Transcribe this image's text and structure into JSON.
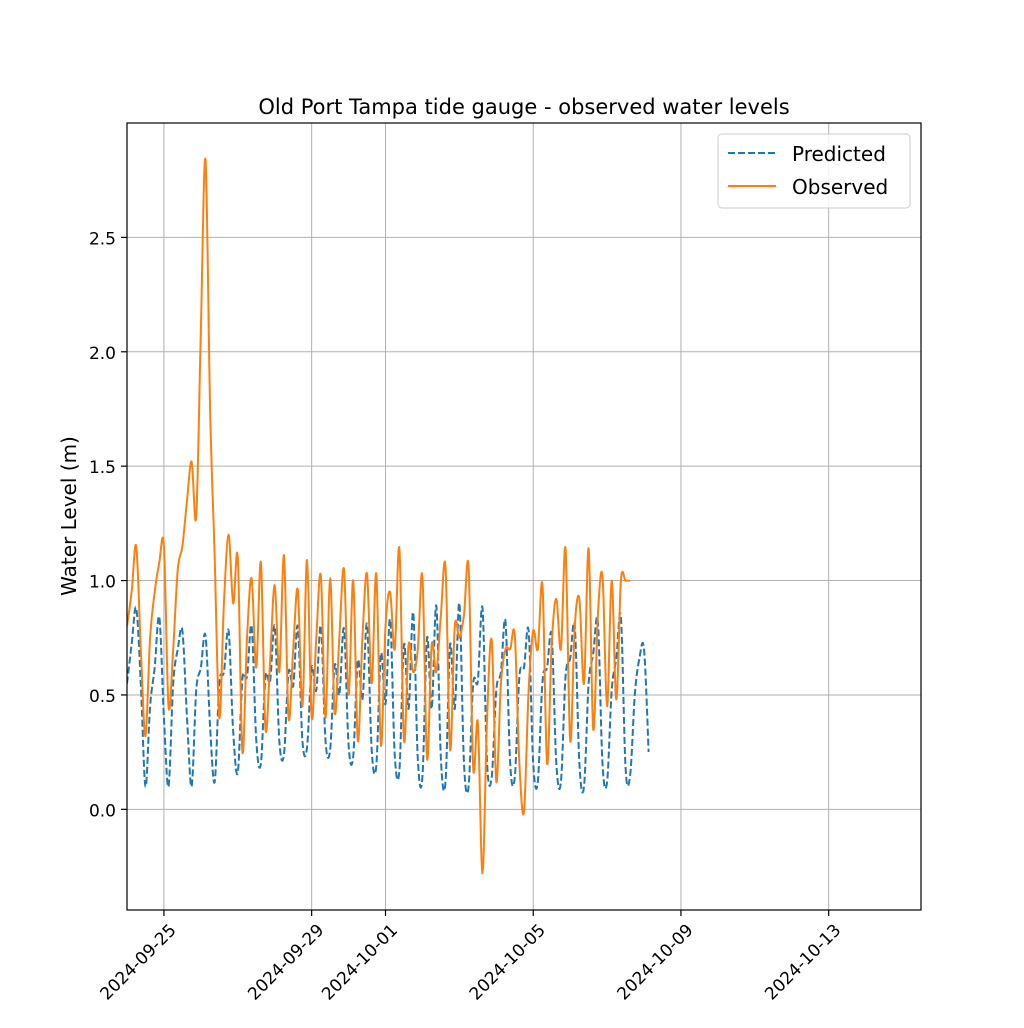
{
  "chart_data": {
    "type": "line",
    "title": "Old Port Tampa tide gauge - observed water levels",
    "xlabel": "",
    "ylabel": "Water Level (m)",
    "x_range": [
      "2024-09-24 00:00",
      "2024-10-15 12:00"
    ],
    "ylim": [
      -0.44,
      3.0
    ],
    "grid": true,
    "legend_position": "top-right",
    "x_ticks": [
      "2024-09-25",
      "2024-09-29",
      "2024-10-01",
      "2024-10-05",
      "2024-10-09",
      "2024-10-13"
    ],
    "y_ticks": [
      "0.0",
      "0.5",
      "1.0",
      "1.5",
      "2.0",
      "2.5"
    ],
    "y_tick_values": [
      0.0,
      0.5,
      1.0,
      1.5,
      2.0,
      2.5
    ],
    "series": [
      {
        "name": "Predicted",
        "color": "#1f77b4",
        "style": "dashed",
        "start": "2024-09-24 00:00",
        "step_hours": 3,
        "values": [
          0.55,
          0.72,
          0.88,
          0.55,
          0.1,
          0.45,
          0.62,
          0.84,
          0.4,
          0.1,
          0.55,
          0.7,
          0.78,
          0.4,
          0.1,
          0.52,
          0.62,
          0.76,
          0.36,
          0.12,
          0.55,
          0.6,
          0.78,
          0.34,
          0.16,
          0.57,
          0.58,
          0.8,
          0.3,
          0.2,
          0.58,
          0.56,
          0.8,
          0.3,
          0.24,
          0.6,
          0.54,
          0.8,
          0.3,
          0.27,
          0.62,
          0.52,
          0.8,
          0.3,
          0.26,
          0.63,
          0.5,
          0.79,
          0.28,
          0.23,
          0.65,
          0.48,
          0.81,
          0.26,
          0.19,
          0.68,
          0.46,
          0.83,
          0.24,
          0.17,
          0.72,
          0.44,
          0.86,
          0.22,
          0.14,
          0.75,
          0.44,
          0.89,
          0.22,
          0.12,
          0.72,
          0.44,
          0.9,
          0.2,
          0.1,
          0.55,
          0.56,
          0.88,
          0.2,
          0.14,
          0.52,
          0.6,
          0.82,
          0.2,
          0.14,
          0.58,
          0.62,
          0.78,
          0.2,
          0.12,
          0.56,
          0.62,
          0.76,
          0.2,
          0.12,
          0.58,
          0.66,
          0.8,
          0.2,
          0.1,
          0.55,
          0.68,
          0.82,
          0.2,
          0.12,
          0.52,
          0.66,
          0.84,
          0.18,
          0.15,
          0.5,
          0.66,
          0.7,
          0.25
        ]
      },
      {
        "name": "Observed",
        "color": "#ff7f0e",
        "style": "solid",
        "start": "2024-09-24 00:00",
        "step_hours": 3,
        "values": [
          0.8,
          0.95,
          1.15,
          0.7,
          0.32,
          0.75,
          0.95,
          1.08,
          1.15,
          0.45,
          0.7,
          1.05,
          1.15,
          1.35,
          1.52,
          1.28,
          2.1,
          2.84,
          1.75,
          1.1,
          0.4,
          0.9,
          1.2,
          0.9,
          1.1,
          0.25,
          0.75,
          1.01,
          0.62,
          1.08,
          0.35,
          0.65,
          0.98,
          0.6,
          1.11,
          0.4,
          0.7,
          0.96,
          0.45,
          1.09,
          0.4,
          0.75,
          1.02,
          0.4,
          1.01,
          0.42,
          0.75,
          1.05,
          0.5,
          1.0,
          0.3,
          0.75,
          1.03,
          0.55,
          1.03,
          0.28,
          0.8,
          0.95,
          0.7,
          1.14,
          0.3,
          0.72,
          0.6,
          0.7,
          1.02,
          0.22,
          0.72,
          0.6,
          0.85,
          1.06,
          0.26,
          0.8,
          0.75,
          0.85,
          1.06,
          0.18,
          0.38,
          -0.28,
          0.4,
          0.74,
          0.12,
          0.55,
          0.7,
          0.7,
          0.76,
          0.2,
          -0.01,
          0.52,
          0.78,
          0.7,
          0.98,
          0.2,
          0.72,
          0.92,
          0.7,
          1.14,
          0.3,
          0.8,
          0.92,
          0.55,
          1.14,
          0.35,
          0.85,
          1.02,
          0.45,
          1.0,
          0.48,
          1.0,
          1.0,
          1.0
        ]
      }
    ]
  }
}
